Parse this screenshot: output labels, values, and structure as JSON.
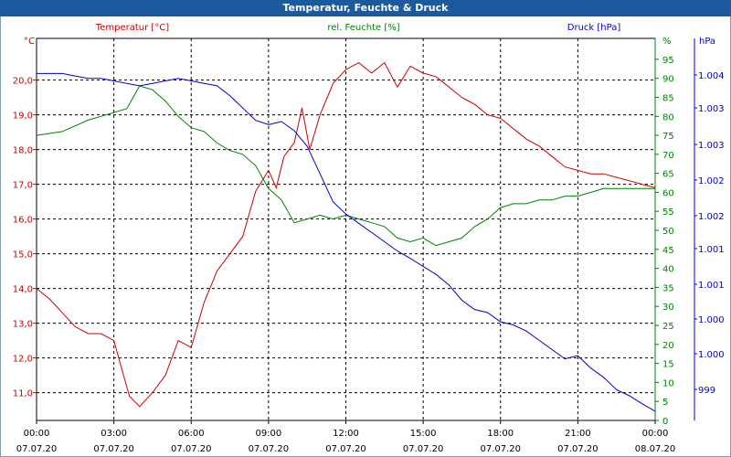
{
  "window": {
    "title": "Temperatur, Feuchte & Druck"
  },
  "colors": {
    "temp": "#cc0000",
    "hum": "#008000",
    "press": "#0000cc",
    "grid": "#000000",
    "title_bar": "#1c5a9e"
  },
  "chart_data": {
    "type": "line",
    "title": "Temperatur, Feuchte & Druck",
    "grid": true,
    "x_ticks": [
      {
        "time": "00:00",
        "date": "07.07.20"
      },
      {
        "time": "03:00",
        "date": "07.07.20"
      },
      {
        "time": "06:00",
        "date": "07.07.20"
      },
      {
        "time": "09:00",
        "date": "07.07.20"
      },
      {
        "time": "12:00",
        "date": "07.07.20"
      },
      {
        "time": "15:00",
        "date": "07.07.20"
      },
      {
        "time": "18:00",
        "date": "07.07.20"
      },
      {
        "time": "21:00",
        "date": "07.07.20"
      },
      {
        "time": "00:00",
        "date": "08.07.20"
      }
    ],
    "x_range_hours": [
      0,
      24
    ],
    "axes": {
      "temp": {
        "label": "Temperatur [°C]",
        "unit": "°C",
        "ylim": [
          10.2,
          21.2
        ],
        "ticks": [
          "20,0",
          "19,0",
          "18,0",
          "17,0",
          "16,0",
          "15,0",
          "14,0",
          "13,0",
          "12,0",
          "11,0"
        ],
        "tick_values": [
          20,
          19,
          18,
          17,
          16,
          15,
          14,
          13,
          12,
          11
        ]
      },
      "hum": {
        "label": "rel. Feuchte [%]",
        "unit": "%",
        "ylim": [
          0,
          100
        ],
        "ticks": [
          "95",
          "90",
          "85",
          "80",
          "75",
          "70",
          "65",
          "60",
          "55",
          "50",
          "45",
          "40",
          "35",
          "30",
          "25",
          "20",
          "15",
          "10",
          "5",
          "0"
        ],
        "tick_values": [
          95,
          90,
          85,
          80,
          75,
          70,
          65,
          60,
          55,
          50,
          45,
          40,
          35,
          30,
          25,
          20,
          15,
          10,
          5,
          0
        ]
      },
      "press": {
        "label": "Druck [hPa]",
        "unit": "hPa",
        "ticks": [
          "1.004",
          "1.003",
          "1.003",
          "1.002",
          "1.002",
          "1.001",
          "1.001",
          "1.000",
          "1.000",
          "999"
        ]
      }
    },
    "series": [
      {
        "name": "Temperatur [°C]",
        "key": "temp",
        "hours": [
          0,
          0.5,
          1,
          1.5,
          2,
          2.5,
          3,
          3.3,
          3.6,
          4,
          4.5,
          5,
          5.5,
          6,
          6.5,
          7,
          7.5,
          8,
          8.5,
          9,
          9.3,
          9.6,
          10,
          10.3,
          10.6,
          11,
          11.5,
          12,
          12.5,
          13,
          13.5,
          14,
          14.5,
          15,
          15.5,
          16,
          16.5,
          17,
          17.5,
          18,
          18.5,
          19,
          19.5,
          20,
          20.5,
          21,
          21.5,
          22,
          22.5,
          23,
          23.5,
          24
        ],
        "values": [
          14.0,
          13.7,
          13.3,
          12.9,
          12.7,
          12.7,
          12.5,
          11.7,
          10.9,
          10.6,
          11.0,
          11.5,
          12.5,
          12.3,
          13.6,
          14.5,
          15.0,
          15.5,
          16.8,
          17.4,
          16.9,
          17.8,
          18.2,
          19.2,
          18.0,
          19.0,
          19.9,
          20.3,
          20.5,
          20.2,
          20.5,
          19.8,
          20.4,
          20.2,
          20.1,
          19.8,
          19.5,
          19.3,
          19.0,
          18.9,
          18.6,
          18.3,
          18.1,
          17.8,
          17.5,
          17.4,
          17.3,
          17.3,
          17.2,
          17.1,
          17.0,
          16.9
        ]
      },
      {
        "name": "rel. Feuchte [%]",
        "key": "hum",
        "hours": [
          0,
          1,
          2,
          2.5,
          3,
          3.5,
          4,
          4.5,
          5,
          5.5,
          6,
          6.5,
          7,
          7.5,
          8,
          8.5,
          9,
          9.5,
          10,
          10.5,
          11,
          11.5,
          12,
          12.5,
          13,
          13.5,
          14,
          14.5,
          15,
          15.5,
          16,
          16.5,
          17,
          17.5,
          18,
          18.5,
          19,
          19.5,
          20,
          20.5,
          21,
          21.5,
          22,
          22.5,
          23,
          23.5,
          24
        ],
        "values": [
          75,
          76,
          79,
          80,
          81,
          82,
          88,
          87,
          84,
          80,
          77,
          76,
          73,
          71,
          70,
          67,
          61,
          58,
          52,
          53,
          54,
          53,
          54,
          53,
          52,
          51,
          48,
          47,
          48,
          46,
          47,
          48,
          51,
          53,
          56,
          57,
          57,
          58,
          58,
          59,
          59,
          60,
          61,
          61,
          61,
          61,
          61
        ]
      },
      {
        "name": "Druck [hPa]",
        "key": "press",
        "hours": [
          0,
          1,
          1.5,
          2,
          2.5,
          3,
          3.5,
          4,
          4.5,
          5,
          5.5,
          6,
          6.5,
          7,
          7.5,
          8,
          8.5,
          9,
          9.5,
          10,
          10.5,
          11,
          11.5,
          12,
          12.5,
          13,
          13.5,
          14,
          14.5,
          15,
          15.5,
          16,
          16.5,
          17,
          17.5,
          18,
          18.5,
          19,
          19.5,
          20,
          20.5,
          21,
          21.5,
          22,
          22.5,
          23,
          23.5,
          24
        ],
        "values": [
          1004.18,
          1004.18,
          1004.14,
          1004.1,
          1004.1,
          1004.06,
          1004.02,
          1003.98,
          1004.02,
          1004.06,
          1004.1,
          1004.06,
          1004.02,
          1003.98,
          1003.82,
          1003.62,
          1003.42,
          1003.35,
          1003.4,
          1003.25,
          1003.0,
          1002.55,
          1002.1,
          1001.9,
          1001.75,
          1001.6,
          1001.45,
          1001.3,
          1001.18,
          1001.05,
          1000.92,
          1000.75,
          1000.5,
          1000.35,
          1000.3,
          1000.15,
          1000.1,
          1000.0,
          999.85,
          999.7,
          999.55,
          999.6,
          999.4,
          999.25,
          999.05,
          998.95,
          998.82,
          998.7
        ]
      }
    ]
  }
}
